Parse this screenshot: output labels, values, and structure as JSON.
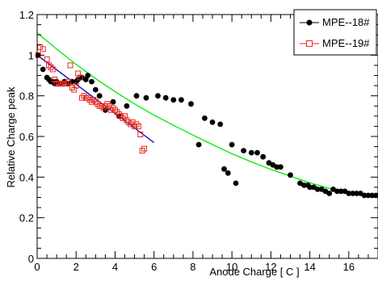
{
  "chart_data": {
    "type": "scatter",
    "title": "",
    "xlabel": "Anode Charge [ C ]",
    "ylabel": "Relative Charge peak",
    "xlim": [
      0,
      17.5
    ],
    "ylim": [
      0,
      1.2
    ],
    "x_ticks": [
      0,
      2,
      4,
      6,
      8,
      10,
      12,
      14,
      16
    ],
    "y_ticks": [
      0,
      0.2,
      0.4,
      0.6,
      0.8,
      1,
      1.2
    ],
    "x_tick_labels": [
      "0",
      "2",
      "4",
      "6",
      "8",
      "10",
      "12",
      "14",
      "16"
    ],
    "y_tick_labels": [
      "0",
      "0.2",
      "0.4",
      "0.6",
      "0.8",
      "1",
      "1.2"
    ],
    "grid": false,
    "legend_position": "top-right",
    "series": [
      {
        "name": "MPE--18#",
        "marker": "filled-circle",
        "color": "#000000",
        "points": [
          [
            0.05,
            1.0
          ],
          [
            0.3,
            0.93
          ],
          [
            0.5,
            0.89
          ],
          [
            0.6,
            0.88
          ],
          [
            0.7,
            0.87
          ],
          [
            0.8,
            0.87
          ],
          [
            0.9,
            0.86
          ],
          [
            1.0,
            0.87
          ],
          [
            1.2,
            0.86
          ],
          [
            1.4,
            0.87
          ],
          [
            1.6,
            0.86
          ],
          [
            1.8,
            0.87
          ],
          [
            2.0,
            0.87
          ],
          [
            2.1,
            0.88
          ],
          [
            2.3,
            0.89
          ],
          [
            2.5,
            0.88
          ],
          [
            2.6,
            0.9
          ],
          [
            2.8,
            0.87
          ],
          [
            3.0,
            0.83
          ],
          [
            3.2,
            0.8
          ],
          [
            3.5,
            0.73
          ],
          [
            3.9,
            0.77
          ],
          [
            4.2,
            0.7
          ],
          [
            4.6,
            0.75
          ],
          [
            5.1,
            0.8
          ],
          [
            5.6,
            0.79
          ],
          [
            6.2,
            0.8
          ],
          [
            6.6,
            0.79
          ],
          [
            7.0,
            0.78
          ],
          [
            7.4,
            0.78
          ],
          [
            7.9,
            0.76
          ],
          [
            8.3,
            0.56
          ],
          [
            8.6,
            0.69
          ],
          [
            9.0,
            0.67
          ],
          [
            9.4,
            0.66
          ],
          [
            9.6,
            0.44
          ],
          [
            9.8,
            0.42
          ],
          [
            10.0,
            0.56
          ],
          [
            10.2,
            0.37
          ],
          [
            10.6,
            0.53
          ],
          [
            11.0,
            0.52
          ],
          [
            11.3,
            0.52
          ],
          [
            11.6,
            0.5
          ],
          [
            11.9,
            0.47
          ],
          [
            12.1,
            0.46
          ],
          [
            12.3,
            0.45
          ],
          [
            12.5,
            0.45
          ],
          [
            13.0,
            0.41
          ],
          [
            13.5,
            0.37
          ],
          [
            13.7,
            0.36
          ],
          [
            13.9,
            0.36
          ],
          [
            14.0,
            0.35
          ],
          [
            14.2,
            0.35
          ],
          [
            14.4,
            0.34
          ],
          [
            14.6,
            0.34
          ],
          [
            14.8,
            0.33
          ],
          [
            15.0,
            0.32
          ],
          [
            15.2,
            0.34
          ],
          [
            15.4,
            0.33
          ],
          [
            15.6,
            0.33
          ],
          [
            15.8,
            0.33
          ],
          [
            16.0,
            0.32
          ],
          [
            16.2,
            0.32
          ],
          [
            16.4,
            0.32
          ],
          [
            16.6,
            0.32
          ],
          [
            16.8,
            0.31
          ],
          [
            17.0,
            0.31
          ],
          [
            17.2,
            0.31
          ],
          [
            17.4,
            0.31
          ]
        ]
      },
      {
        "name": "MPE--19#",
        "marker": "open-square",
        "color": "#e8281e",
        "points": [
          [
            0.05,
            1.0
          ],
          [
            0.15,
            1.04
          ],
          [
            0.3,
            1.03
          ],
          [
            0.5,
            0.98
          ],
          [
            0.6,
            0.95
          ],
          [
            0.7,
            0.94
          ],
          [
            0.8,
            0.93
          ],
          [
            0.9,
            0.88
          ],
          [
            1.0,
            0.86
          ],
          [
            1.1,
            0.86
          ],
          [
            1.2,
            0.86
          ],
          [
            1.3,
            0.86
          ],
          [
            1.4,
            0.86
          ],
          [
            1.5,
            0.86
          ],
          [
            1.6,
            0.87
          ],
          [
            1.7,
            0.95
          ],
          [
            1.8,
            0.84
          ],
          [
            1.9,
            0.83
          ],
          [
            2.0,
            0.85
          ],
          [
            2.1,
            0.91
          ],
          [
            2.2,
            0.89
          ],
          [
            2.3,
            0.79
          ],
          [
            2.4,
            0.8
          ],
          [
            2.5,
            0.79
          ],
          [
            2.6,
            0.79
          ],
          [
            2.7,
            0.78
          ],
          [
            2.8,
            0.77
          ],
          [
            2.9,
            0.78
          ],
          [
            3.0,
            0.77
          ],
          [
            3.1,
            0.76
          ],
          [
            3.2,
            0.75
          ],
          [
            3.3,
            0.75
          ],
          [
            3.4,
            0.74
          ],
          [
            3.5,
            0.75
          ],
          [
            3.6,
            0.76
          ],
          [
            3.7,
            0.75
          ],
          [
            3.8,
            0.73
          ],
          [
            3.9,
            0.74
          ],
          [
            4.0,
            0.73
          ],
          [
            4.1,
            0.72
          ],
          [
            4.2,
            0.71
          ],
          [
            4.3,
            0.7
          ],
          [
            4.4,
            0.69
          ],
          [
            4.5,
            0.7
          ],
          [
            4.6,
            0.68
          ],
          [
            4.7,
            0.67
          ],
          [
            4.8,
            0.66
          ],
          [
            4.9,
            0.67
          ],
          [
            5.0,
            0.65
          ],
          [
            5.1,
            0.66
          ],
          [
            5.2,
            0.65
          ],
          [
            5.3,
            0.61
          ],
          [
            5.4,
            0.53
          ],
          [
            5.5,
            0.54
          ]
        ]
      }
    ],
    "fits": [
      {
        "color": "#0000cc",
        "kind": "linear",
        "x_range": [
          0,
          6.0
        ],
        "points": [
          [
            0,
            1.0
          ],
          [
            6.0,
            0.57
          ]
        ]
      },
      {
        "color": "#00ee00",
        "kind": "curve",
        "x_range": [
          0,
          17.5
        ],
        "points": [
          [
            0,
            1.11
          ],
          [
            1,
            1.03
          ],
          [
            2,
            0.955
          ],
          [
            3,
            0.885
          ],
          [
            4,
            0.82
          ],
          [
            5,
            0.76
          ],
          [
            6,
            0.705
          ],
          [
            7,
            0.655
          ],
          [
            8,
            0.607
          ],
          [
            9,
            0.56
          ],
          [
            10,
            0.515
          ],
          [
            11,
            0.475
          ],
          [
            12,
            0.438
          ],
          [
            13,
            0.405
          ],
          [
            14,
            0.372
          ],
          [
            15,
            0.345
          ],
          [
            16,
            0.322
          ],
          [
            17,
            0.305
          ],
          [
            17.5,
            0.3
          ]
        ]
      }
    ]
  }
}
